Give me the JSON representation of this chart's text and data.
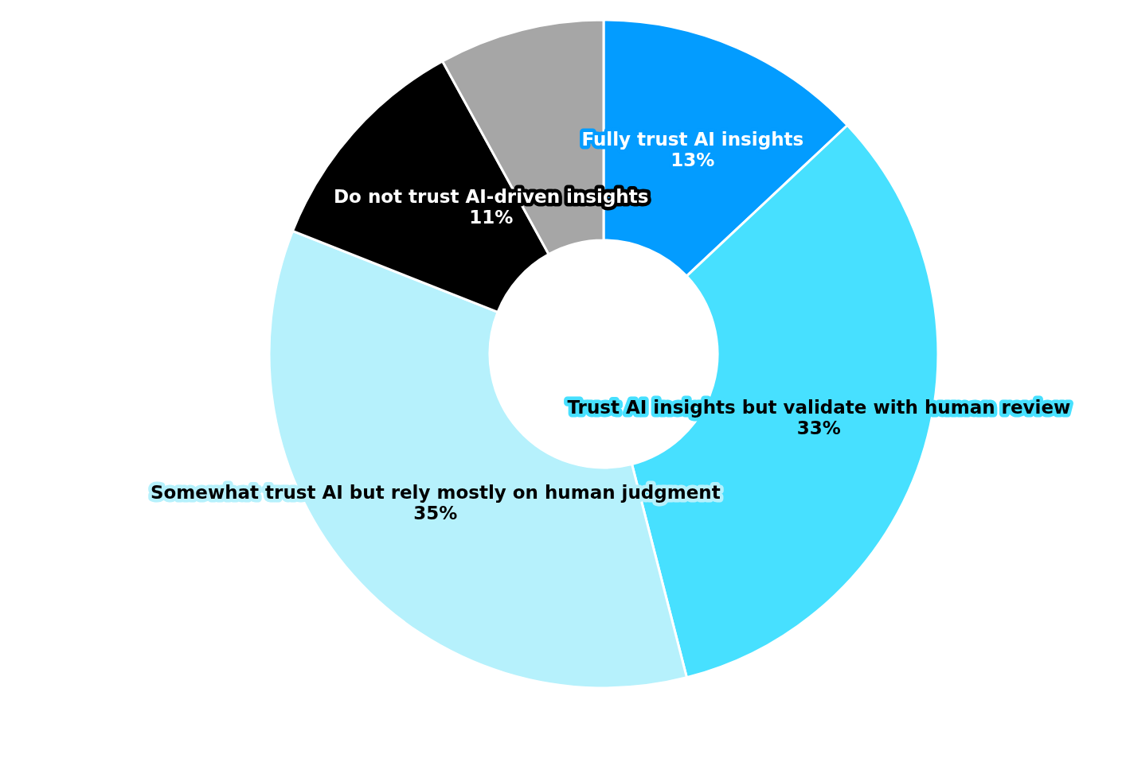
{
  "chart_data": {
    "type": "donut",
    "categories": [
      "Fully trust AI insights",
      "Trust AI insights but validate with human review",
      "Somewhat trust AI but rely mostly on human judgment",
      "Do not trust AI-driven insights",
      null
    ],
    "values": [
      13,
      33,
      35,
      11,
      8
    ],
    "colors": [
      "#039cff",
      "#47e0ff",
      "#b6f1fc",
      "#000000",
      "#a6a6a6"
    ],
    "value_labels": [
      "13%",
      "33%",
      "35%",
      "11%",
      null
    ]
  }
}
